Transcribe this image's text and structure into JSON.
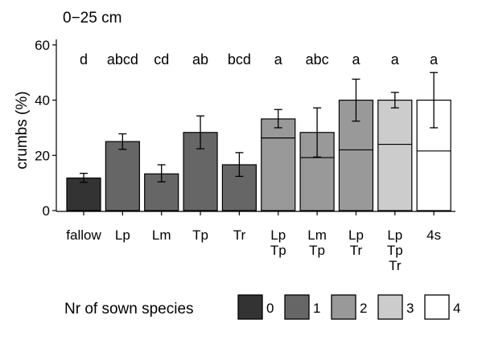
{
  "chart_data": {
    "type": "bar",
    "title": "0−25 cm",
    "xlabel": "",
    "ylabel": "crumbs (%)",
    "ylim": [
      0,
      62
    ],
    "yticks": [
      0,
      20,
      40,
      60
    ],
    "grid": false,
    "legend_placement": "bottom",
    "legend_title": "Nr of sown species",
    "categories": [
      {
        "lines": [
          "fallow"
        ],
        "value": 11.8,
        "err_low": 10.2,
        "err_high": 13.5,
        "species": 0,
        "divider": null,
        "letters": "d"
      },
      {
        "lines": [
          "Lp"
        ],
        "value": 25.0,
        "err_low": 22.2,
        "err_high": 27.8,
        "species": 1,
        "divider": null,
        "letters": "abcd"
      },
      {
        "lines": [
          "Lm"
        ],
        "value": 13.3,
        "err_low": 10.4,
        "err_high": 16.6,
        "species": 1,
        "divider": null,
        "letters": "cd"
      },
      {
        "lines": [
          "Tp"
        ],
        "value": 28.3,
        "err_low": 22.4,
        "err_high": 34.3,
        "species": 1,
        "divider": null,
        "letters": "ab"
      },
      {
        "lines": [
          "Tr"
        ],
        "value": 16.6,
        "err_low": 12.4,
        "err_high": 21.0,
        "species": 1,
        "divider": null,
        "letters": "bcd"
      },
      {
        "lines": [
          "Lp",
          "Tp"
        ],
        "value": 33.2,
        "err_low": 30.0,
        "err_high": 36.6,
        "species": 2,
        "divider": 26.3,
        "letters": "a"
      },
      {
        "lines": [
          "Lm",
          "Tp"
        ],
        "value": 28.3,
        "err_low": 19.4,
        "err_high": 37.2,
        "species": 2,
        "divider": 19.2,
        "letters": "abc"
      },
      {
        "lines": [
          "Lp",
          "Tr"
        ],
        "value": 40.0,
        "err_low": 32.4,
        "err_high": 47.6,
        "species": 2,
        "divider": 22.0,
        "letters": "a"
      },
      {
        "lines": [
          "Lp",
          "Tp",
          "Tr"
        ],
        "value": 40.0,
        "err_low": 37.2,
        "err_high": 42.8,
        "species": 3,
        "divider": 24.0,
        "letters": "a"
      },
      {
        "lines": [
          "4s"
        ],
        "value": 40.0,
        "err_low": 30.0,
        "err_high": 50.0,
        "species": 4,
        "divider": 21.6,
        "letters": "a"
      }
    ],
    "legend": [
      {
        "label": "0",
        "color": "#333333"
      },
      {
        "label": "1",
        "color": "#666666"
      },
      {
        "label": "2",
        "color": "#999999"
      },
      {
        "label": "3",
        "color": "#cccccc"
      },
      {
        "label": "4",
        "color": "#ffffff"
      }
    ]
  }
}
